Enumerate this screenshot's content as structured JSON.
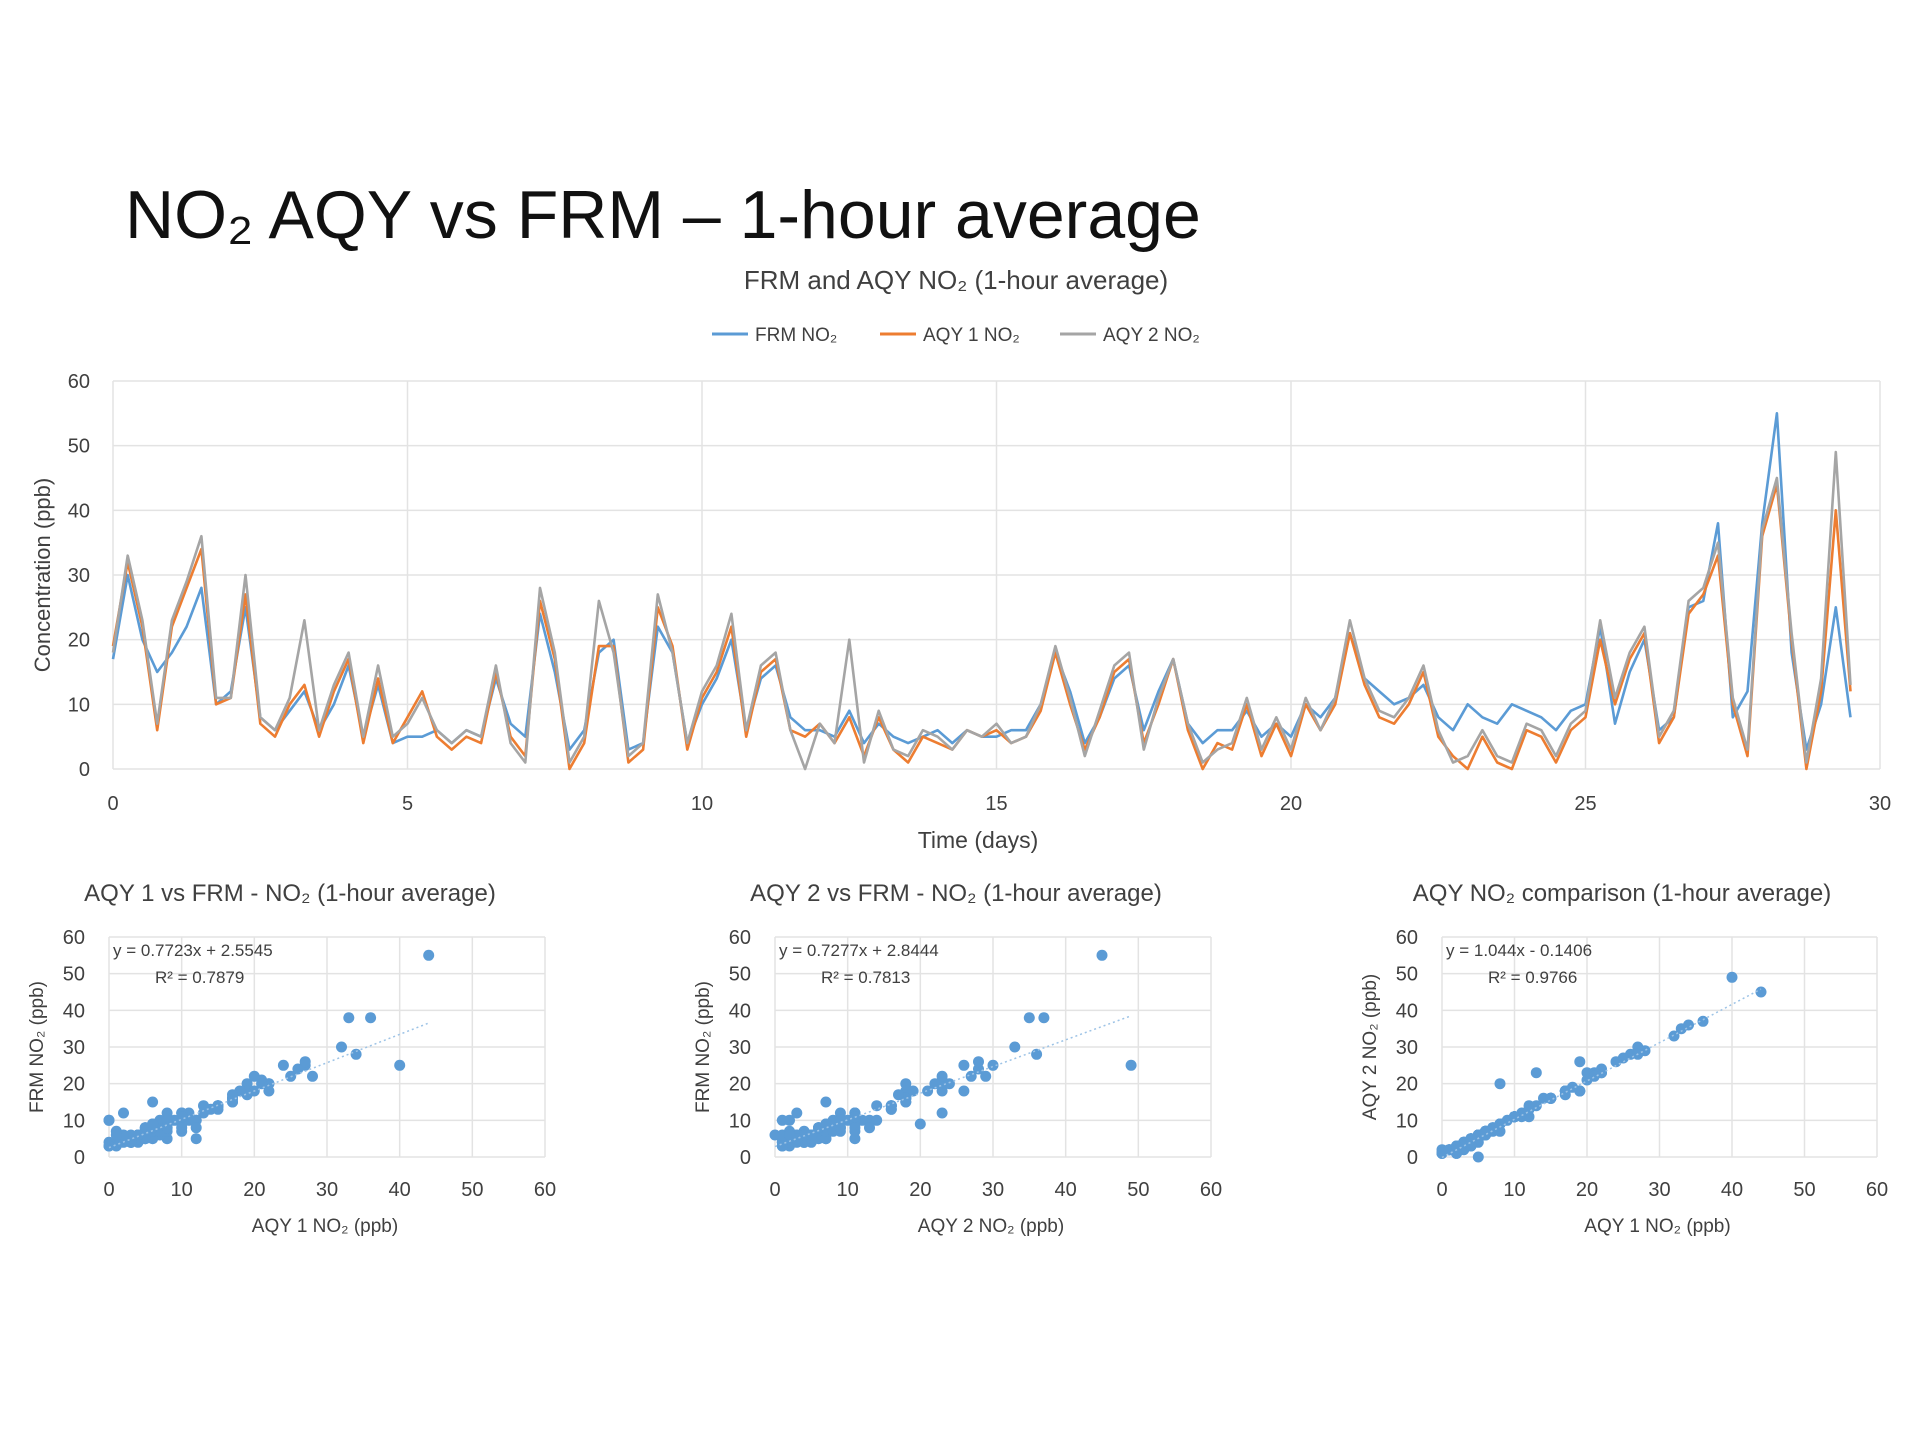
{
  "slide_title": "NO₂ AQY vs FRM – 1-hour average",
  "colors": {
    "frm": "#5B9BD5",
    "aqy1": "#ED7D31",
    "aqy2": "#A5A5A5",
    "grid": "#E3E3E3",
    "trendline": "#9DC3E6"
  },
  "chart_data": [
    {
      "type": "line",
      "title": "FRM and AQY NO₂ (1-hour average)",
      "xlabel": "Time (days)",
      "ylabel": "Concentration (ppb)",
      "xlim": [
        0,
        30
      ],
      "ylim": [
        0,
        60
      ],
      "xticks": [
        "0",
        "5",
        "10",
        "15",
        "20",
        "25",
        "30"
      ],
      "yticks": [
        "0",
        "10",
        "20",
        "30",
        "40",
        "50",
        "60"
      ],
      "grid": true,
      "legend_position": "top",
      "x": [
        0,
        0.25,
        0.5,
        0.75,
        1,
        1.25,
        1.5,
        1.75,
        2,
        2.25,
        2.5,
        2.75,
        3,
        3.25,
        3.5,
        3.75,
        4,
        4.25,
        4.5,
        4.75,
        5,
        5.25,
        5.5,
        5.75,
        6,
        6.25,
        6.5,
        6.75,
        7,
        7.25,
        7.5,
        7.75,
        8,
        8.25,
        8.5,
        8.75,
        9,
        9.25,
        9.5,
        9.75,
        10,
        10.25,
        10.5,
        10.75,
        11,
        11.25,
        11.5,
        11.75,
        12,
        12.25,
        12.5,
        12.75,
        13,
        13.25,
        13.5,
        13.75,
        14,
        14.25,
        14.5,
        14.75,
        15,
        15.25,
        15.5,
        15.75,
        16,
        16.25,
        16.5,
        16.75,
        17,
        17.25,
        17.5,
        17.75,
        18,
        18.25,
        18.5,
        18.75,
        19,
        19.25,
        19.5,
        19.75,
        20,
        20.25,
        20.5,
        20.75,
        21,
        21.25,
        21.5,
        21.75,
        22,
        22.25,
        22.5,
        22.75,
        23,
        23.25,
        23.5,
        23.75,
        24,
        24.25,
        24.5,
        24.75,
        25,
        25.25,
        25.5,
        25.75,
        26,
        26.25,
        26.5,
        26.75,
        27,
        27.25,
        27.5,
        27.75,
        28,
        28.25,
        28.5,
        28.75,
        29,
        29.25,
        29.5
      ],
      "series": [
        {
          "name": "FRM  NO₂",
          "color_key": "frm",
          "values": [
            17,
            30,
            20,
            15,
            18,
            22,
            28,
            10,
            12,
            25,
            8,
            6,
            9,
            12,
            6,
            10,
            16,
            5,
            13,
            4,
            5,
            5,
            6,
            4,
            6,
            5,
            14,
            7,
            5,
            24,
            15,
            3,
            6,
            18,
            20,
            3,
            4,
            22,
            18,
            4,
            10,
            14,
            20,
            6,
            14,
            16,
            8,
            6,
            6,
            5,
            9,
            4,
            7,
            5,
            4,
            5,
            6,
            4,
            6,
            5,
            5,
            6,
            6,
            10,
            18,
            12,
            4,
            8,
            14,
            16,
            6,
            12,
            17,
            7,
            4,
            6,
            6,
            9,
            5,
            7,
            5,
            10,
            8,
            11,
            21,
            14,
            12,
            10,
            11,
            13,
            8,
            6,
            10,
            8,
            7,
            10,
            9,
            8,
            6,
            9,
            10,
            22,
            7,
            15,
            20,
            6,
            8,
            25,
            26,
            38,
            8,
            12,
            38,
            55,
            18,
            3,
            10,
            25,
            8
          ]
        },
        {
          "name": "AQY 1 NO₂",
          "color_key": "aqy1",
          "values": [
            19,
            32,
            22,
            6,
            22,
            28,
            34,
            10,
            11,
            27,
            7,
            5,
            10,
            13,
            5,
            12,
            17,
            4,
            14,
            4,
            8,
            12,
            5,
            3,
            5,
            4,
            15,
            5,
            2,
            26,
            17,
            0,
            4,
            19,
            19,
            1,
            3,
            25,
            19,
            3,
            11,
            15,
            22,
            5,
            15,
            17,
            6,
            5,
            7,
            4,
            8,
            2,
            8,
            3,
            1,
            5,
            4,
            3,
            6,
            5,
            6,
            4,
            5,
            9,
            18,
            10,
            3,
            8,
            15,
            17,
            4,
            10,
            17,
            6,
            0,
            4,
            3,
            10,
            2,
            7,
            2,
            10,
            6,
            10,
            21,
            13,
            8,
            7,
            10,
            15,
            5,
            2,
            0,
            5,
            1,
            0,
            6,
            5,
            1,
            6,
            8,
            20,
            10,
            17,
            21,
            4,
            8,
            24,
            27,
            33,
            10,
            2,
            36,
            44,
            20,
            0,
            12,
            40,
            12
          ]
        },
        {
          "name": "AQY 2 NO₂",
          "color_key": "aqy2",
          "values": [
            18,
            33,
            23,
            7,
            23,
            29,
            36,
            11,
            11,
            30,
            8,
            6,
            11,
            23,
            6,
            13,
            18,
            5,
            16,
            5,
            7,
            11,
            6,
            4,
            6,
            5,
            16,
            4,
            1,
            28,
            18,
            1,
            5,
            26,
            18,
            2,
            4,
            27,
            18,
            4,
            12,
            16,
            24,
            6,
            16,
            18,
            6,
            0,
            7,
            4,
            20,
            1,
            9,
            3,
            2,
            6,
            5,
            3,
            6,
            5,
            7,
            4,
            5,
            10,
            19,
            11,
            2,
            9,
            16,
            18,
            3,
            11,
            17,
            7,
            1,
            3,
            4,
            11,
            3,
            8,
            3,
            11,
            6,
            11,
            23,
            14,
            9,
            8,
            11,
            16,
            6,
            1,
            2,
            6,
            2,
            1,
            7,
            6,
            2,
            7,
            9,
            23,
            11,
            18,
            22,
            5,
            9,
            26,
            28,
            35,
            11,
            3,
            37,
            45,
            21,
            1,
            14,
            49,
            13
          ]
        }
      ]
    },
    {
      "type": "scatter",
      "title": "AQY 1 vs FRM - NO₂ (1-hour average)",
      "xlabel": "AQY 1 NO₂ (ppb)",
      "ylabel": "FRM NO₂ (ppb)",
      "xlim": [
        0,
        60
      ],
      "ylim": [
        0,
        60
      ],
      "xticks": [
        "0",
        "10",
        "20",
        "30",
        "40",
        "50",
        "60"
      ],
      "yticks": [
        "0",
        "10",
        "20",
        "30",
        "40",
        "50",
        "60"
      ],
      "x_series": "AQY 1 NO₂",
      "y_series": "FRM  NO₂",
      "trendline": {
        "slope": 0.7723,
        "intercept": 2.5545,
        "equation": "y = 0.7723x + 2.5545",
        "r2": "R² = 0.7879"
      }
    },
    {
      "type": "scatter",
      "title": "AQY 2 vs FRM - NO₂ (1-hour average)",
      "xlabel": "AQY 2 NO₂ (ppb)",
      "ylabel": "FRM NO₂ (ppb)",
      "xlim": [
        0,
        60
      ],
      "ylim": [
        0,
        60
      ],
      "xticks": [
        "0",
        "10",
        "20",
        "30",
        "40",
        "50",
        "60"
      ],
      "yticks": [
        "0",
        "10",
        "20",
        "30",
        "40",
        "50",
        "60"
      ],
      "x_series": "AQY 2 NO₂",
      "y_series": "FRM  NO₂",
      "trendline": {
        "slope": 0.7277,
        "intercept": 2.8444,
        "equation": "y = 0.7277x + 2.8444",
        "r2": "R² = 0.7813"
      }
    },
    {
      "type": "scatter",
      "title": "AQY NO₂ comparison (1-hour average)",
      "xlabel": "AQY 1 NO₂ (ppb)",
      "ylabel": "AQY 2 NO₂ (ppb)",
      "xlim": [
        0,
        60
      ],
      "ylim": [
        0,
        60
      ],
      "xticks": [
        "0",
        "10",
        "20",
        "30",
        "40",
        "50",
        "60"
      ],
      "yticks": [
        "0",
        "10",
        "20",
        "30",
        "40",
        "50",
        "60"
      ],
      "x_series": "AQY 1 NO₂",
      "y_series": "AQY 2 NO₂",
      "trendline": {
        "slope": 1.044,
        "intercept": -0.1406,
        "equation": "y = 1.044x - 0.1406",
        "r2": "R² = 0.9766"
      }
    }
  ]
}
